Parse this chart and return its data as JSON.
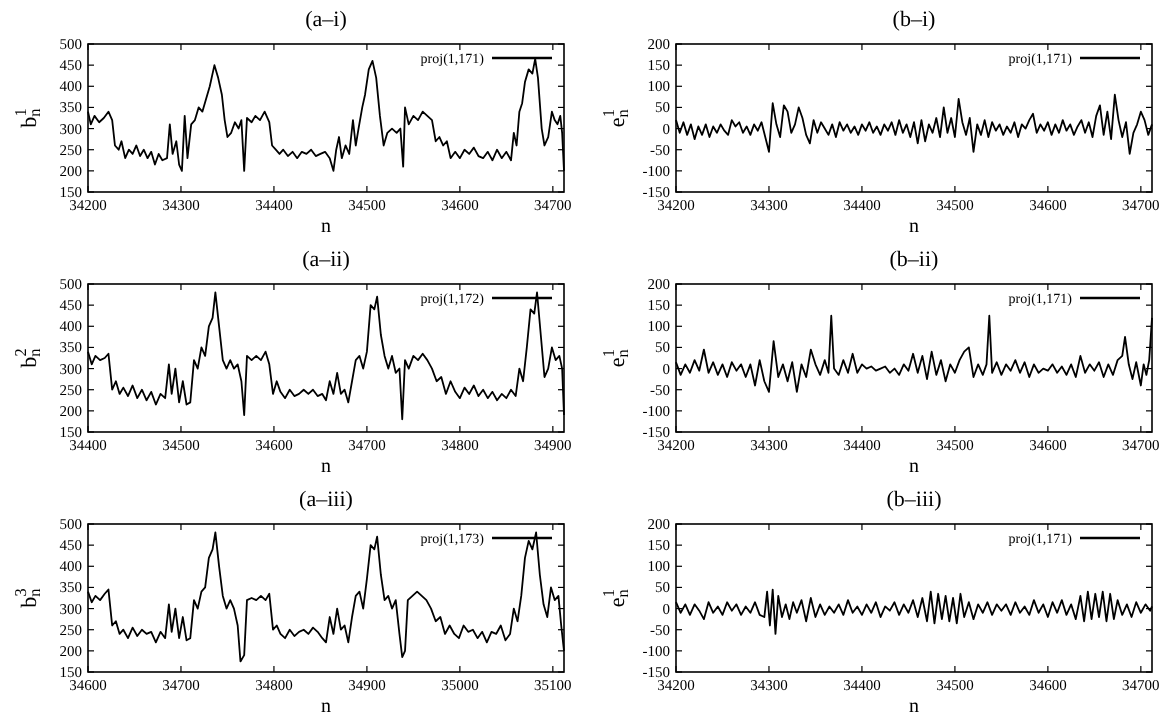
{
  "chart_data": [
    {
      "type": "line",
      "title": "(a–i)",
      "xlabel": "n",
      "ylabel": "b$_{n}$$^{1}$",
      "legend": "top right",
      "xlim": [
        34200,
        34712
      ],
      "ylim": [
        150,
        500
      ],
      "xticks": [
        34200,
        34300,
        34400,
        34500,
        34600,
        34700
      ],
      "yticks": [
        150,
        200,
        250,
        300,
        350,
        400,
        450,
        500
      ],
      "x": [
        34200,
        34203,
        34207,
        34212,
        34217,
        34222,
        34226,
        34229,
        34233,
        34236,
        34240,
        34244,
        34248,
        34252,
        34256,
        34260,
        34264,
        34268,
        34272,
        34276,
        34280,
        34285,
        34288,
        34291,
        34295,
        34298,
        34301,
        34304,
        34307,
        34311,
        34315,
        34319,
        34323,
        34327,
        34331,
        34336,
        34340,
        34344,
        34347,
        34350,
        34354,
        34358,
        34362,
        34365,
        34368,
        34371,
        34376,
        34380,
        34385,
        34390,
        34395,
        34398,
        34402,
        34406,
        34410,
        34415,
        34420,
        34425,
        34430,
        34435,
        34440,
        34445,
        34450,
        34455,
        34460,
        34464,
        34467,
        34470,
        34473,
        34477,
        34481,
        34485,
        34488,
        34491,
        34495,
        34498,
        34502,
        34506,
        34510,
        34514,
        34518,
        34522,
        34527,
        34532,
        34536,
        34539,
        34541,
        34545,
        34550,
        34555,
        34560,
        34565,
        34570,
        34574,
        34578,
        34582,
        34586,
        34590,
        34595,
        34600,
        34605,
        34610,
        34615,
        34620,
        34625,
        34630,
        34635,
        34640,
        34645,
        34650,
        34655,
        34658,
        34661,
        34664,
        34667,
        34670,
        34674,
        34678,
        34681,
        34684,
        34688,
        34691,
        34695,
        34699,
        34702,
        34705,
        34708,
        34710,
        34712
      ],
      "series": [
        {
          "name": "proj(1,171)",
          "color": "#000000",
          "values": [
            340,
            310,
            330,
            315,
            325,
            340,
            320,
            260,
            250,
            270,
            230,
            250,
            240,
            260,
            235,
            250,
            230,
            245,
            215,
            240,
            225,
            230,
            310,
            240,
            270,
            215,
            200,
            330,
            230,
            310,
            320,
            350,
            340,
            370,
            400,
            450,
            420,
            380,
            320,
            280,
            290,
            315,
            300,
            320,
            200,
            325,
            315,
            330,
            320,
            340,
            315,
            260,
            250,
            240,
            250,
            235,
            245,
            230,
            245,
            240,
            250,
            235,
            240,
            245,
            230,
            200,
            250,
            280,
            230,
            260,
            240,
            320,
            260,
            300,
            350,
            380,
            440,
            460,
            420,
            330,
            260,
            290,
            300,
            290,
            300,
            210,
            350,
            310,
            330,
            320,
            340,
            330,
            320,
            270,
            280,
            260,
            270,
            230,
            245,
            230,
            250,
            240,
            255,
            235,
            230,
            245,
            225,
            250,
            230,
            245,
            225,
            290,
            260,
            340,
            360,
            410,
            440,
            430,
            465,
            420,
            300,
            260,
            280,
            340,
            320,
            310,
            330,
            290,
            200
          ]
        }
      ]
    },
    {
      "type": "line",
      "title": "(b–i)",
      "xlabel": "n",
      "ylabel": "e$_{n}$$^{1}$",
      "legend": "top right",
      "xlim": [
        34200,
        34712
      ],
      "ylim": [
        -150,
        200
      ],
      "xticks": [
        34200,
        34300,
        34400,
        34500,
        34600,
        34700
      ],
      "yticks": [
        -150,
        -100,
        -50,
        0,
        50,
        100,
        150,
        200
      ],
      "x": [
        34200,
        34204,
        34208,
        34212,
        34216,
        34220,
        34224,
        34228,
        34232,
        34236,
        34240,
        34244,
        34248,
        34252,
        34256,
        34260,
        34264,
        34268,
        34272,
        34276,
        34280,
        34284,
        34288,
        34292,
        34296,
        34300,
        34304,
        34308,
        34312,
        34316,
        34320,
        34324,
        34328,
        34332,
        34336,
        34340,
        34344,
        34348,
        34352,
        34356,
        34360,
        34364,
        34368,
        34372,
        34376,
        34380,
        34384,
        34388,
        34392,
        34396,
        34400,
        34404,
        34408,
        34412,
        34416,
        34420,
        34424,
        34428,
        34432,
        34436,
        34440,
        34444,
        34448,
        34452,
        34456,
        34460,
        34464,
        34468,
        34472,
        34476,
        34480,
        34484,
        34488,
        34492,
        34496,
        34500,
        34504,
        34508,
        34512,
        34516,
        34520,
        34524,
        34528,
        34532,
        34536,
        34540,
        34544,
        34548,
        34552,
        34556,
        34560,
        34564,
        34568,
        34572,
        34576,
        34580,
        34584,
        34588,
        34592,
        34596,
        34600,
        34604,
        34608,
        34612,
        34616,
        34620,
        34624,
        34628,
        34632,
        34636,
        34640,
        34644,
        34648,
        34652,
        34656,
        34660,
        34664,
        34668,
        34672,
        34676,
        34680,
        34684,
        34688,
        34692,
        34696,
        34700,
        34704,
        34708,
        34712
      ],
      "series": [
        {
          "name": "proj(1,171)",
          "color": "#000000",
          "values": [
            20,
            -10,
            15,
            -15,
            10,
            -25,
            5,
            -15,
            10,
            -20,
            5,
            -10,
            10,
            -5,
            -15,
            20,
            5,
            15,
            -10,
            5,
            -15,
            10,
            -5,
            15,
            -20,
            -55,
            60,
            10,
            -20,
            55,
            40,
            -10,
            10,
            50,
            25,
            -15,
            -35,
            20,
            -10,
            15,
            0,
            -15,
            10,
            -20,
            15,
            -5,
            10,
            -10,
            5,
            -15,
            10,
            -5,
            15,
            -10,
            5,
            -15,
            10,
            -5,
            15,
            -15,
            20,
            -10,
            10,
            -20,
            15,
            -35,
            20,
            -30,
            10,
            -10,
            25,
            -20,
            50,
            -10,
            25,
            -20,
            70,
            15,
            -15,
            25,
            -55,
            10,
            -15,
            20,
            -20,
            15,
            -5,
            10,
            -15,
            5,
            -10,
            15,
            -20,
            10,
            0,
            20,
            35,
            -10,
            10,
            -5,
            15,
            -15,
            10,
            -10,
            20,
            -5,
            10,
            -15,
            5,
            20,
            -10,
            15,
            -20,
            30,
            55,
            -15,
            40,
            -25,
            80,
            20,
            -20,
            15,
            -60,
            -10,
            10,
            40,
            20,
            -15,
            10
          ]
        }
      ]
    },
    {
      "type": "line",
      "title": "(a–ii)",
      "xlabel": "n",
      "ylabel": "b$_{n}$$^{2}$",
      "legend": "top right",
      "xlim": [
        34400,
        34912
      ],
      "ylim": [
        150,
        500
      ],
      "xticks": [
        34400,
        34500,
        34600,
        34700,
        34800,
        34900
      ],
      "yticks": [
        150,
        200,
        250,
        300,
        350,
        400,
        450,
        500
      ],
      "x": [
        34400,
        34404,
        34408,
        34413,
        34418,
        34422,
        34426,
        34430,
        34434,
        34438,
        34443,
        34448,
        34453,
        34458,
        34463,
        34468,
        34473,
        34478,
        34483,
        34487,
        34490,
        34494,
        34498,
        34502,
        34506,
        34510,
        34514,
        34518,
        34522,
        34526,
        34530,
        34534,
        34537,
        34541,
        34545,
        34549,
        34553,
        34557,
        34561,
        34565,
        34568,
        34571,
        34576,
        34581,
        34586,
        34591,
        34595,
        34599,
        34603,
        34607,
        34612,
        34617,
        34622,
        34627,
        34632,
        34637,
        34642,
        34647,
        34652,
        34656,
        34660,
        34664,
        34668,
        34672,
        34676,
        34680,
        34684,
        34688,
        34692,
        34696,
        34700,
        34704,
        34708,
        34711,
        34715,
        34719,
        34723,
        34727,
        34731,
        34735,
        34738,
        34741,
        34745,
        34750,
        34755,
        34760,
        34765,
        34770,
        34775,
        34780,
        34785,
        34790,
        34795,
        34800,
        34805,
        34810,
        34815,
        34820,
        34825,
        34830,
        34835,
        34840,
        34845,
        34850,
        34855,
        34860,
        34864,
        34868,
        34872,
        34876,
        34880,
        34883,
        34887,
        34891,
        34895,
        34899,
        34903,
        34907,
        34910,
        34912
      ],
      "series": [
        {
          "name": "proj(1,172)",
          "color": "#000000",
          "values": [
            340,
            310,
            330,
            320,
            325,
            335,
            250,
            270,
            240,
            255,
            235,
            260,
            230,
            250,
            225,
            245,
            215,
            240,
            230,
            310,
            240,
            300,
            220,
            270,
            215,
            220,
            320,
            300,
            350,
            330,
            400,
            420,
            480,
            400,
            320,
            300,
            320,
            300,
            310,
            270,
            190,
            330,
            320,
            330,
            320,
            340,
            310,
            240,
            270,
            245,
            230,
            250,
            235,
            240,
            250,
            240,
            250,
            235,
            240,
            225,
            270,
            240,
            290,
            240,
            250,
            220,
            270,
            320,
            330,
            300,
            340,
            450,
            440,
            470,
            380,
            330,
            300,
            330,
            290,
            300,
            180,
            320,
            300,
            330,
            320,
            335,
            320,
            300,
            270,
            280,
            240,
            270,
            245,
            230,
            255,
            240,
            260,
            235,
            250,
            230,
            245,
            225,
            240,
            230,
            250,
            235,
            300,
            270,
            350,
            440,
            430,
            480,
            380,
            280,
            300,
            350,
            320,
            330,
            300,
            190
          ]
        }
      ]
    },
    {
      "type": "line",
      "title": "(b–ii)",
      "xlabel": "n",
      "ylabel": "e$_{n}$$^{1}$",
      "legend": "top right",
      "xlim": [
        34200,
        34712
      ],
      "ylim": [
        -150,
        200
      ],
      "xticks": [
        34200,
        34300,
        34400,
        34500,
        34600,
        34700
      ],
      "yticks": [
        -150,
        -100,
        -50,
        0,
        50,
        100,
        150,
        200
      ],
      "x": [
        34200,
        34205,
        34210,
        34215,
        34220,
        34225,
        34230,
        34235,
        34240,
        34245,
        34250,
        34255,
        34260,
        34265,
        34270,
        34275,
        34280,
        34285,
        34290,
        34295,
        34300,
        34305,
        34310,
        34315,
        34320,
        34325,
        34330,
        34335,
        34340,
        34345,
        34350,
        34355,
        34360,
        34364,
        34367,
        34370,
        34375,
        34380,
        34385,
        34390,
        34395,
        34400,
        34405,
        34410,
        34415,
        34420,
        34425,
        34430,
        34435,
        34440,
        34445,
        34450,
        34455,
        34460,
        34465,
        34470,
        34475,
        34480,
        34485,
        34490,
        34495,
        34500,
        34505,
        34510,
        34515,
        34520,
        34525,
        34530,
        34534,
        34537,
        34540,
        34545,
        34550,
        34555,
        34560,
        34565,
        34570,
        34575,
        34580,
        34585,
        34590,
        34595,
        34600,
        34605,
        34610,
        34615,
        34620,
        34625,
        34630,
        34635,
        34640,
        34645,
        34650,
        34655,
        34660,
        34665,
        34670,
        34675,
        34680,
        34683,
        34687,
        34691,
        34695,
        34700,
        34703,
        34706,
        34709,
        34712
      ],
      "series": [
        {
          "name": "proj(1,171)",
          "color": "#000000",
          "values": [
            15,
            -15,
            10,
            -10,
            20,
            -5,
            45,
            -10,
            15,
            -15,
            10,
            -20,
            15,
            -5,
            10,
            -20,
            10,
            -40,
            20,
            -30,
            -55,
            65,
            -20,
            10,
            -30,
            15,
            -55,
            10,
            -20,
            45,
            10,
            -15,
            20,
            -10,
            125,
            0,
            -15,
            20,
            -10,
            35,
            -10,
            10,
            0,
            5,
            -5,
            0,
            5,
            -10,
            0,
            -15,
            10,
            -5,
            35,
            -10,
            30,
            -25,
            40,
            -15,
            20,
            -30,
            10,
            -10,
            20,
            40,
            50,
            -20,
            10,
            -15,
            10,
            125,
            -10,
            15,
            -15,
            10,
            -5,
            20,
            -10,
            15,
            -20,
            10,
            -10,
            0,
            -5,
            10,
            -10,
            5,
            -15,
            10,
            -20,
            30,
            -10,
            10,
            -5,
            15,
            -20,
            10,
            -15,
            20,
            30,
            75,
            10,
            -25,
            15,
            -40,
            10,
            -15,
            20,
            120
          ]
        }
      ]
    },
    {
      "type": "line",
      "title": "(a–iii)",
      "xlabel": "n",
      "ylabel": "b$_{n}$$^{3}$",
      "legend": "top right",
      "xlim": [
        34600,
        35112
      ],
      "ylim": [
        150,
        500
      ],
      "xticks": [
        34600,
        34700,
        34800,
        34900,
        35000,
        35100
      ],
      "yticks": [
        150,
        200,
        250,
        300,
        350,
        400,
        450,
        500
      ],
      "x": [
        34600,
        34604,
        34608,
        34613,
        34618,
        34622,
        34626,
        34630,
        34634,
        34638,
        34643,
        34648,
        34653,
        34658,
        34663,
        34668,
        34673,
        34678,
        34683,
        34687,
        34690,
        34694,
        34698,
        34702,
        34706,
        34710,
        34714,
        34718,
        34722,
        34726,
        34730,
        34734,
        34737,
        34741,
        34745,
        34749,
        34753,
        34757,
        34761,
        34764,
        34768,
        34771,
        34776,
        34781,
        34786,
        34791,
        34795,
        34799,
        34803,
        34807,
        34812,
        34817,
        34822,
        34827,
        34832,
        34837,
        34842,
        34847,
        34852,
        34856,
        34860,
        34864,
        34868,
        34872,
        34876,
        34880,
        34884,
        34888,
        34892,
        34896,
        34900,
        34904,
        34908,
        34911,
        34915,
        34919,
        34923,
        34927,
        34931,
        34935,
        34938,
        34941,
        34944,
        34949,
        34954,
        34959,
        34964,
        34969,
        34974,
        34979,
        34984,
        34989,
        34994,
        34999,
        35004,
        35009,
        35014,
        35019,
        35024,
        35029,
        35034,
        35039,
        35044,
        35049,
        35054,
        35058,
        35062,
        35066,
        35070,
        35074,
        35078,
        35082,
        35086,
        35090,
        35094,
        35098,
        35102,
        35106,
        35109,
        35112
      ],
      "series": [
        {
          "name": "proj(1,173)",
          "color": "#000000",
          "values": [
            340,
            315,
            330,
            320,
            335,
            345,
            260,
            270,
            240,
            250,
            230,
            255,
            235,
            250,
            240,
            245,
            220,
            245,
            230,
            310,
            245,
            300,
            230,
            280,
            225,
            230,
            320,
            300,
            340,
            350,
            420,
            440,
            480,
            400,
            330,
            300,
            320,
            300,
            260,
            175,
            190,
            320,
            325,
            320,
            330,
            320,
            335,
            250,
            260,
            240,
            230,
            250,
            235,
            245,
            250,
            240,
            255,
            245,
            230,
            220,
            280,
            240,
            300,
            250,
            260,
            220,
            280,
            330,
            340,
            300,
            370,
            450,
            440,
            470,
            380,
            320,
            330,
            300,
            320,
            240,
            185,
            200,
            320,
            330,
            340,
            330,
            320,
            300,
            270,
            280,
            240,
            260,
            240,
            230,
            260,
            245,
            250,
            230,
            245,
            220,
            245,
            240,
            260,
            225,
            240,
            300,
            270,
            330,
            420,
            460,
            440,
            480,
            380,
            310,
            280,
            350,
            320,
            330,
            260,
            200
          ]
        }
      ]
    },
    {
      "type": "line",
      "title": "(b–iii)",
      "xlabel": "n",
      "ylabel": "e$_{n}$$^{1}$",
      "legend": "top right",
      "xlim": [
        34200,
        34712
      ],
      "ylim": [
        -150,
        200
      ],
      "xticks": [
        34200,
        34300,
        34400,
        34500,
        34600,
        34700
      ],
      "yticks": [
        -150,
        -100,
        -50,
        0,
        50,
        100,
        150,
        200
      ],
      "x": [
        34200,
        34205,
        34210,
        34215,
        34220,
        34225,
        34230,
        34235,
        34240,
        34245,
        34250,
        34255,
        34260,
        34265,
        34270,
        34275,
        34280,
        34285,
        34290,
        34295,
        34298,
        34301,
        34304,
        34307,
        34310,
        34314,
        34318,
        34322,
        34326,
        34330,
        34335,
        34340,
        34345,
        34350,
        34355,
        34360,
        34365,
        34370,
        34375,
        34380,
        34385,
        34390,
        34395,
        34400,
        34405,
        34410,
        34415,
        34420,
        34425,
        34430,
        34435,
        34440,
        34445,
        34450,
        34455,
        34460,
        34465,
        34470,
        34474,
        34478,
        34482,
        34486,
        34490,
        34494,
        34498,
        34502,
        34506,
        34510,
        34515,
        34520,
        34525,
        34530,
        34535,
        34540,
        34545,
        34550,
        34555,
        34560,
        34565,
        34570,
        34575,
        34580,
        34585,
        34590,
        34595,
        34600,
        34605,
        34610,
        34615,
        34620,
        34625,
        34630,
        34635,
        34639,
        34643,
        34647,
        34651,
        34655,
        34659,
        34663,
        34667,
        34671,
        34675,
        34680,
        34685,
        34690,
        34695,
        34700,
        34705,
        34710,
        34712
      ],
      "series": [
        {
          "name": "proj(1,171)",
          "color": "#000000",
          "values": [
            15,
            -10,
            10,
            -15,
            10,
            -5,
            -25,
            15,
            -10,
            5,
            -15,
            15,
            -5,
            10,
            -15,
            5,
            -10,
            15,
            -15,
            -20,
            40,
            -40,
            45,
            -60,
            30,
            -20,
            10,
            -25,
            15,
            -10,
            20,
            -30,
            25,
            -20,
            10,
            -15,
            5,
            -10,
            10,
            -15,
            20,
            -10,
            5,
            -15,
            10,
            -10,
            15,
            -20,
            5,
            -5,
            15,
            -15,
            10,
            -10,
            20,
            -20,
            25,
            -30,
            40,
            -35,
            35,
            -25,
            30,
            -30,
            25,
            -35,
            35,
            -20,
            15,
            -25,
            10,
            -10,
            15,
            -15,
            10,
            -5,
            10,
            -15,
            15,
            -10,
            5,
            -15,
            20,
            -10,
            10,
            -20,
            15,
            -10,
            20,
            -15,
            10,
            -25,
            30,
            -30,
            40,
            -25,
            35,
            -20,
            40,
            -30,
            35,
            -25,
            20,
            -15,
            10,
            -20,
            15,
            -10,
            10,
            -5,
            5
          ]
        }
      ]
    }
  ]
}
